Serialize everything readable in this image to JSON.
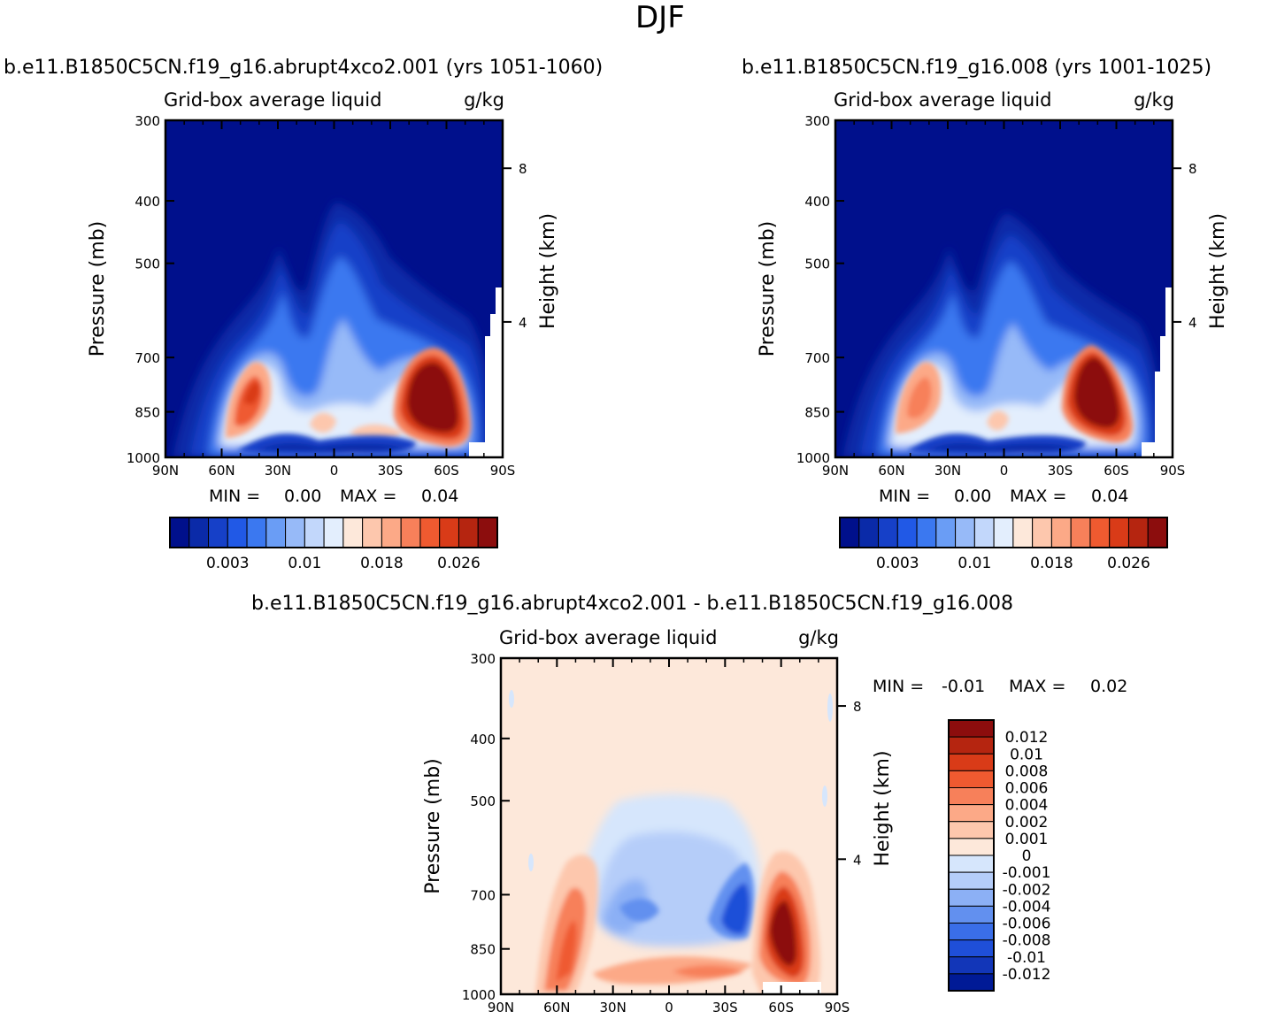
{
  "figure_title": "DJF",
  "panel_top_left": {
    "case": "b.e11.B1850C5CN.f19_g16.abrupt4xco2.001",
    "years": "(yrs 1051-1060)",
    "left_string": "Grid-box average liquid",
    "right_string": "g/kg",
    "ylabel": "Pressure (mb)",
    "ylabel_right": "Height (km)",
    "min_label": "MIN =",
    "min_value": "0.00",
    "max_label": "MAX =",
    "max_value": "0.04"
  },
  "panel_top_right": {
    "case": "b.e11.B1850C5CN.f19_g16.008",
    "years": "(yrs 1001-1025)",
    "left_string": "Grid-box average liquid",
    "right_string": "g/kg",
    "ylabel": "Pressure (mb)",
    "ylabel_right": "Height (km)",
    "min_label": "MIN =",
    "min_value": "0.00",
    "max_label": "MAX =",
    "max_value": "0.04"
  },
  "panel_bottom": {
    "case": "b.e11.B1850C5CN.f19_g16.abrupt4xco2.001 - b.e11.B1850C5CN.f19_g16.008",
    "left_string": "Grid-box average liquid",
    "right_string": "g/kg",
    "ylabel": "Pressure (mb)",
    "ylabel_right": "Height (km)",
    "min_label": "MIN =",
    "min_value": "-0.01",
    "max_label": "MAX =",
    "max_value": "0.02"
  },
  "axes": {
    "x_ticks": [
      "90N",
      "60N",
      "30N",
      "0",
      "30S",
      "60S",
      "90S"
    ],
    "x_values": [
      90,
      60,
      30,
      0,
      -30,
      -60,
      -90
    ],
    "pressure_ticks": [
      300,
      400,
      500,
      700,
      850,
      1000
    ],
    "height_ticks": [
      8,
      4
    ]
  },
  "colorbar_top": {
    "colors": [
      "#00108c",
      "#0a2aa8",
      "#1640c8",
      "#2159e6",
      "#3b78f0",
      "#6a9df5",
      "#97baf8",
      "#c2d7fb",
      "#e3eefd",
      "#fde8da",
      "#fdc7ad",
      "#fca987",
      "#f7805a",
      "#ef5a30",
      "#d93b18",
      "#b52510",
      "#8c0d0d"
    ],
    "labels": [
      "0.003",
      "0.01",
      "0.018",
      "0.026"
    ]
  },
  "colorbar_diff": {
    "colors": [
      "#8c0d0d",
      "#b52510",
      "#d93b18",
      "#ef5a30",
      "#f7805a",
      "#fca987",
      "#fdc7ad",
      "#fde8da",
      "#d6e6fc",
      "#b5cdf9",
      "#8cb0f5",
      "#6290ef",
      "#3a6ee8",
      "#1f4fd8",
      "#1236b8",
      "#001a96"
    ],
    "labels": [
      "0.012",
      "0.01",
      "0.008",
      "0.006",
      "0.004",
      "0.002",
      "0.001",
      "0",
      "-0.001",
      "-0.002",
      "-0.004",
      "-0.006",
      "-0.008",
      "-0.01",
      "-0.012"
    ]
  },
  "chart_data": [
    {
      "type": "heatmap",
      "title": "b.e11.B1850C5CN.f19_g16.abrupt4xco2.001 (yrs 1051-1060)",
      "xlabel": "",
      "ylabel": "Pressure (mb)",
      "x_ticks": [
        "90N",
        "60N",
        "30N",
        "0",
        "30S",
        "60S",
        "90S"
      ],
      "y_ticks": [
        300,
        400,
        500,
        700,
        850,
        1000
      ],
      "xlim": [
        90,
        -90
      ],
      "ylim": [
        1000,
        300
      ],
      "features": [
        {
          "lat": 43,
          "p": 840,
          "value": 0.022
        },
        {
          "lat": -47,
          "p": 870,
          "value": 0.04
        },
        {
          "lat": 5,
          "p": 950,
          "value": 0.012
        }
      ],
      "min": 0.0,
      "max": 0.04
    },
    {
      "type": "heatmap",
      "title": "b.e11.B1850C5CN.f19_g16.008 (yrs 1001-1025)",
      "xlabel": "",
      "ylabel": "Pressure (mb)",
      "x_ticks": [
        "90N",
        "60N",
        "30N",
        "0",
        "30S",
        "60S",
        "90S"
      ],
      "y_ticks": [
        300,
        400,
        500,
        700,
        850,
        1000
      ],
      "xlim": [
        90,
        -90
      ],
      "ylim": [
        1000,
        300
      ],
      "features": [
        {
          "lat": 43,
          "p": 840,
          "value": 0.02
        },
        {
          "lat": -42,
          "p": 850,
          "value": 0.04
        },
        {
          "lat": 5,
          "p": 945,
          "value": 0.012
        }
      ],
      "min": 0.0,
      "max": 0.04
    },
    {
      "type": "heatmap",
      "title": "b.e11.B1850C5CN.f19_g16.abrupt4xco2.001 - b.e11.B1850C5CN.f19_g16.008",
      "xlabel": "",
      "ylabel": "Pressure (mb)",
      "x_ticks": [
        "90N",
        "60N",
        "30N",
        "0",
        "30S",
        "60S",
        "90S"
      ],
      "y_ticks": [
        300,
        400,
        500,
        700,
        850,
        1000
      ],
      "xlim": [
        90,
        -90
      ],
      "ylim": [
        1000,
        300
      ],
      "features": [
        {
          "lat": 55,
          "p": 900,
          "value": 0.006
        },
        {
          "lat": -58,
          "p": 880,
          "value": 0.012
        },
        {
          "lat": -45,
          "p": 820,
          "value": -0.008
        },
        {
          "lat": 20,
          "p": 800,
          "value": -0.004
        }
      ],
      "min": -0.01,
      "max": 0.02
    }
  ]
}
